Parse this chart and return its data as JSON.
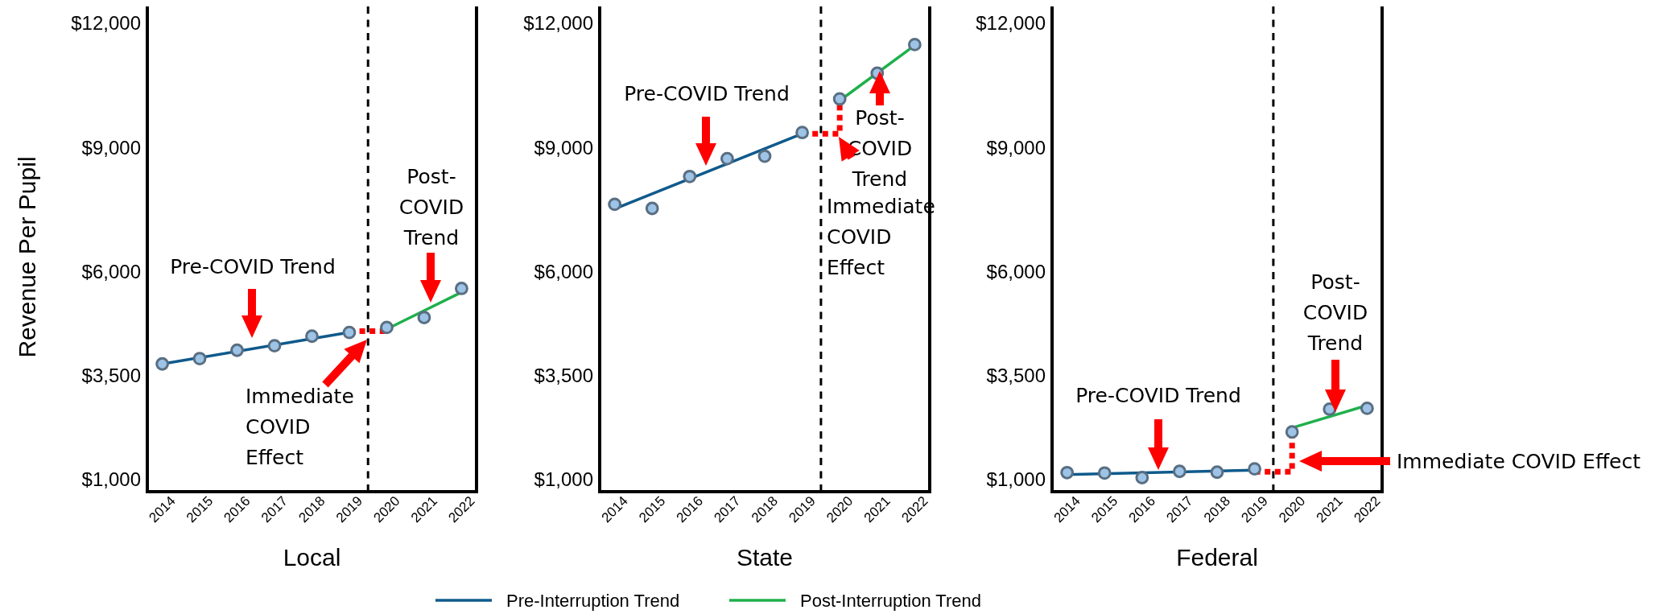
{
  "chart_data": [
    {
      "type": "line",
      "xlabel": "Local",
      "ylabel": "Revenue Per Pupil",
      "legend": "bottom",
      "x": [
        2014,
        2015,
        2016,
        2017,
        2018,
        2019,
        2020,
        2021,
        2022
      ],
      "xlim": [
        2013.6,
        2022.4
      ],
      "xticks": [
        2014,
        2015,
        2016,
        2017,
        2018,
        2019,
        2020,
        2021,
        2022
      ],
      "ylim": [
        700,
        12400
      ],
      "yticks": [
        {
          "value": 1000,
          "label": "$1,000"
        },
        {
          "value": 3500,
          "label": "$3,500"
        },
        {
          "value": 6000,
          "label": "$6,000"
        },
        {
          "value": 9000,
          "label": "$9,000"
        },
        {
          "value": 12000,
          "label": "$12,000"
        }
      ],
      "ref_lines": [
        {
          "axis": "x",
          "value": 2019.5,
          "color": "#000000",
          "line_style": "dashed"
        }
      ],
      "series": [
        {
          "name": "Pre-Interruption Trend",
          "color": "#0f5a8c",
          "x": [
            2014,
            2019
          ],
          "values": [
            3780,
            4540
          ]
        },
        {
          "name": "Post-Interruption Trend",
          "color": "#1fb04c",
          "x": [
            2020,
            2022
          ],
          "values": [
            4620,
            5510
          ]
        },
        {
          "color": "#ff0000",
          "line_style": "dotted",
          "x": [
            2019,
            2020
          ],
          "values": [
            4570,
            4570
          ]
        },
        {
          "type": "scatter",
          "marker": "circle",
          "color": "#9dc3e6",
          "values": [
            3780,
            3910,
            4110,
            4220,
            4450,
            4540,
            4660,
            4900,
            5600
          ]
        }
      ],
      "annotations": [
        "Pre-COVID Trend",
        "Immediate COVID Effect",
        "Post-COVID Trend"
      ]
    },
    {
      "type": "line",
      "xlabel": "State",
      "x": [
        2014,
        2015,
        2016,
        2017,
        2018,
        2019,
        2020,
        2021,
        2022
      ],
      "xlim": [
        2013.6,
        2022.4
      ],
      "xticks": [
        2014,
        2015,
        2016,
        2017,
        2018,
        2019,
        2020,
        2021,
        2022
      ],
      "ylim": [
        700,
        12400
      ],
      "yticks": [
        {
          "value": 1000,
          "label": "$1,000"
        },
        {
          "value": 3500,
          "label": "$3,500"
        },
        {
          "value": 6000,
          "label": "$6,000"
        },
        {
          "value": 9000,
          "label": "$9,000"
        },
        {
          "value": 12000,
          "label": "$12,000"
        }
      ],
      "ref_lines": [
        {
          "axis": "x",
          "value": 2019.5,
          "color": "#000000",
          "line_style": "dashed"
        }
      ],
      "series": [
        {
          "color": "#0f5a8c",
          "x": [
            2014,
            2019
          ],
          "values": [
            7520,
            9330
          ]
        },
        {
          "color": "#1fb04c",
          "x": [
            2020,
            2022
          ],
          "values": [
            10130,
            11460
          ]
        },
        {
          "color": "#ff0000",
          "line_style": "dotted",
          "x": [
            2019,
            2020,
            2020
          ],
          "values": [
            9330,
            9330,
            10170
          ]
        },
        {
          "type": "scatter",
          "marker": "circle",
          "color": "#9dc3e6",
          "values": [
            7630,
            7530,
            8300,
            8730,
            8790,
            9360,
            10170,
            10790,
            11480
          ]
        }
      ],
      "annotations": [
        "Pre-COVID Trend",
        "Post-COVID Trend",
        "Immediate COVID Effect"
      ]
    },
    {
      "type": "line",
      "xlabel": "Federal",
      "x": [
        2014,
        2015,
        2016,
        2017,
        2018,
        2019,
        2020,
        2021,
        2022
      ],
      "xlim": [
        2013.6,
        2022.4
      ],
      "xticks": [
        2014,
        2015,
        2016,
        2017,
        2018,
        2019,
        2020,
        2021,
        2022
      ],
      "ylim": [
        700,
        12400
      ],
      "yticks": [
        {
          "value": 1000,
          "label": "$1,000"
        },
        {
          "value": 3500,
          "label": "$3,500"
        },
        {
          "value": 6000,
          "label": "$6,000"
        },
        {
          "value": 9000,
          "label": "$9,000"
        },
        {
          "value": 12000,
          "label": "$12,000"
        }
      ],
      "ref_lines": [
        {
          "axis": "x",
          "value": 2019.5,
          "color": "#000000",
          "line_style": "dashed"
        }
      ],
      "series": [
        {
          "color": "#0f5a8c",
          "x": [
            2014,
            2019
          ],
          "values": [
            1110,
            1220
          ]
        },
        {
          "color": "#1fb04c",
          "x": [
            2020,
            2022
          ],
          "values": [
            2240,
            2780
          ]
        },
        {
          "color": "#ff0000",
          "line_style": "dotted",
          "x": [
            2019,
            2020,
            2020
          ],
          "values": [
            1180,
            1180,
            2140
          ]
        },
        {
          "type": "scatter",
          "marker": "circle",
          "color": "#9dc3e6",
          "values": [
            1160,
            1150,
            1040,
            1190,
            1170,
            1250,
            2140,
            2690,
            2710
          ]
        }
      ],
      "annotations": [
        "Pre-COVID Trend",
        "Post-COVID Trend",
        "Immediate COVID Effect"
      ]
    }
  ]
}
